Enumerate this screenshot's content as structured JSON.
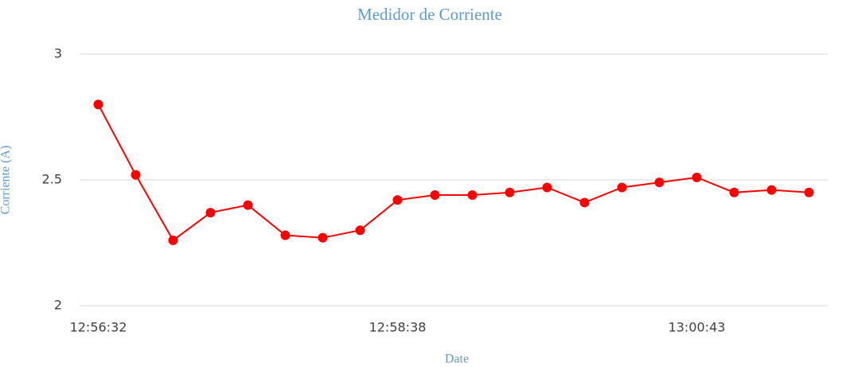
{
  "chart_data": {
    "type": "line",
    "title": "Medidor de Corriente",
    "x_label": "Date",
    "y_label": "Corriente (A)",
    "categories": [
      "12:56:32",
      null,
      null,
      null,
      null,
      null,
      null,
      null,
      "12:58:38",
      null,
      null,
      null,
      null,
      null,
      null,
      null,
      "13:00:43",
      null,
      null,
      null
    ],
    "series": [
      {
        "name": "Corriente (A)",
        "color": "#ff0000",
        "values": [
          2.8,
          2.52,
          2.26,
          2.37,
          2.4,
          2.28,
          2.27,
          2.3,
          2.42,
          2.44,
          2.44,
          2.45,
          2.47,
          2.41,
          2.47,
          2.49,
          2.51,
          2.45,
          2.46,
          2.45
        ]
      }
    ],
    "ylim": [
      2,
      3
    ],
    "yticks": [
      2,
      2.5,
      3
    ],
    "grid": true
  }
}
